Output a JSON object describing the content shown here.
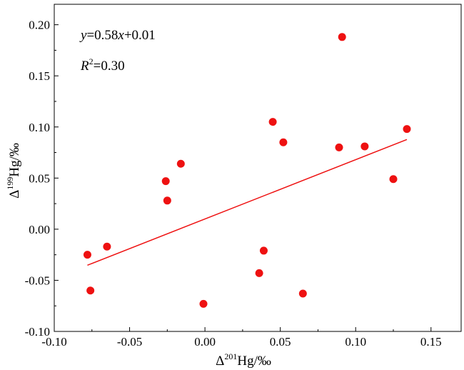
{
  "chart_data": {
    "type": "scatter",
    "xlabel": {
      "prefix": "Δ",
      "sup": "201",
      "suffix": "Hg/‰"
    },
    "ylabel": {
      "prefix": "Δ",
      "sup": "199",
      "suffix": "Hg/‰"
    },
    "xlim": [
      -0.1,
      0.17
    ],
    "ylim": [
      -0.1,
      0.22
    ],
    "x_ticks": [
      -0.1,
      -0.05,
      0.0,
      0.05,
      0.1,
      0.15
    ],
    "x_tick_labels": [
      "-0.10",
      "-0.05",
      "0.00",
      "0.05",
      "0.10",
      "0.15"
    ],
    "y_ticks": [
      -0.1,
      -0.05,
      0.0,
      0.05,
      0.1,
      0.15,
      0.2
    ],
    "y_tick_labels": [
      "-0.10",
      "-0.05",
      "0.00",
      "0.05",
      "0.10",
      "0.15",
      "0.20"
    ],
    "grid": false,
    "marker_color": "#ee1111",
    "line_color": "#ee1111",
    "points": [
      {
        "x": -0.078,
        "y": -0.025
      },
      {
        "x": -0.076,
        "y": -0.06
      },
      {
        "x": -0.065,
        "y": -0.017
      },
      {
        "x": -0.026,
        "y": 0.047
      },
      {
        "x": -0.025,
        "y": 0.028
      },
      {
        "x": -0.016,
        "y": 0.064
      },
      {
        "x": -0.001,
        "y": -0.073
      },
      {
        "x": 0.036,
        "y": -0.043
      },
      {
        "x": 0.039,
        "y": -0.021
      },
      {
        "x": 0.045,
        "y": 0.105
      },
      {
        "x": 0.052,
        "y": 0.085
      },
      {
        "x": 0.065,
        "y": -0.063
      },
      {
        "x": 0.089,
        "y": 0.08
      },
      {
        "x": 0.091,
        "y": 0.188
      },
      {
        "x": 0.106,
        "y": 0.081
      },
      {
        "x": 0.125,
        "y": 0.049
      },
      {
        "x": 0.134,
        "y": 0.098
      }
    ],
    "trendline": {
      "slope": 0.58,
      "intercept": 0.01,
      "x_range": [
        -0.078,
        0.134
      ]
    },
    "annotations": {
      "equation": {
        "y": "y",
        "eq": "=0.58",
        "x": "x",
        "rest": "+0.01"
      },
      "r2": {
        "r": "R",
        "sup": "2",
        "rest": "=0.30"
      }
    }
  }
}
